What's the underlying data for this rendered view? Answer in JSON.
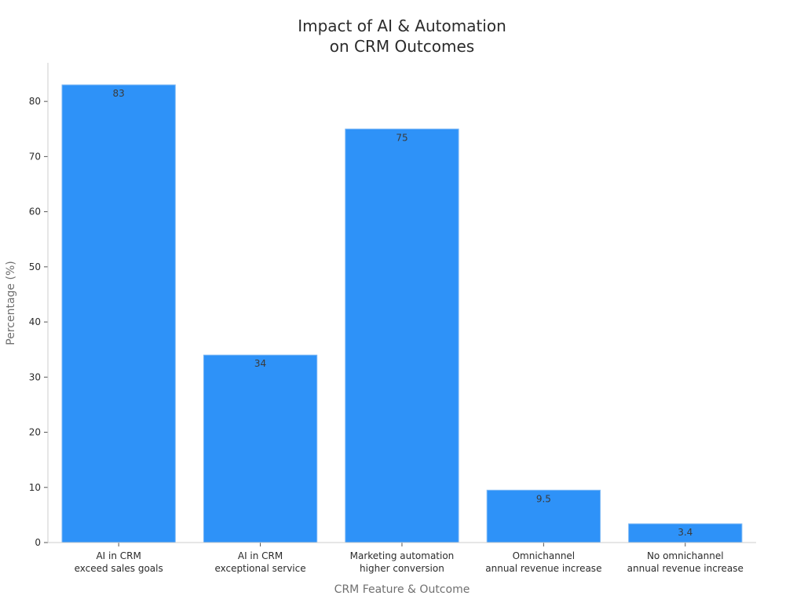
{
  "chart_data": {
    "type": "bar",
    "title": [
      "Impact of AI & Automation",
      "on CRM Outcomes"
    ],
    "xlabel": "CRM Feature & Outcome",
    "ylabel": "Percentage (%)",
    "ylim": [
      0,
      87
    ],
    "yticks": [
      0,
      10,
      20,
      30,
      40,
      50,
      60,
      70,
      80
    ],
    "categories": [
      [
        "AI in CRM",
        "exceed sales goals"
      ],
      [
        "AI in CRM",
        "exceptional service"
      ],
      [
        "Marketing automation",
        "higher conversion"
      ],
      [
        "Omnichannel",
        "annual revenue increase"
      ],
      [
        "No omnichannel",
        "annual revenue increase"
      ]
    ],
    "values": [
      83,
      34,
      75,
      9.5,
      3.4
    ],
    "value_labels": [
      "83",
      "34",
      "75",
      "9.5",
      "3.4"
    ],
    "bar_color": "#2e92f8",
    "bar_edge_color": "#7fb9f5",
    "axis_color": "#cccccc"
  }
}
